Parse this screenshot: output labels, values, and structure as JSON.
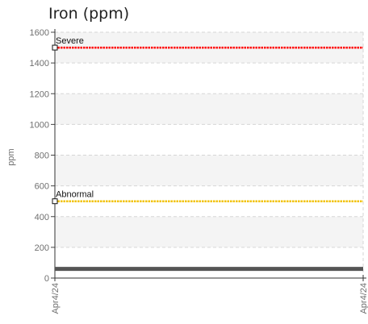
{
  "chart_data": {
    "type": "line",
    "title": "Iron (ppm)",
    "ylabel": "ppm",
    "xlabel": "",
    "ylim": [
      0,
      1600
    ],
    "yticks": [
      0,
      200,
      400,
      600,
      800,
      1000,
      1200,
      1400,
      1600
    ],
    "x": [
      "Apr4/24",
      "Apr4/24"
    ],
    "grid": true,
    "series": [
      {
        "values": [
          60,
          60
        ],
        "color": "#555555"
      }
    ],
    "thresholds": [
      {
        "label": "Severe",
        "value": 1500,
        "color": "#ff0000"
      },
      {
        "label": "Abnormal",
        "value": 500,
        "color": "#f2c200"
      }
    ]
  }
}
